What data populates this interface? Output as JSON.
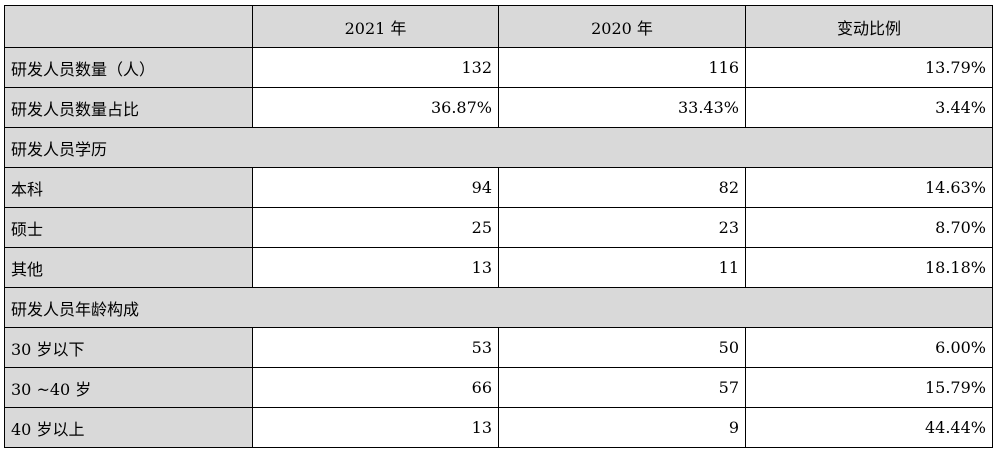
{
  "table": {
    "header": [
      "",
      "2021 年",
      "2020 年",
      "变动比例"
    ],
    "rows": [
      {
        "type": "data",
        "label": "研发人员数量（人）",
        "v2021": "132",
        "v2020": "116",
        "change": "13.79%"
      },
      {
        "type": "data",
        "label": "研发人员数量占比",
        "v2021": "36.87%",
        "v2020": "33.43%",
        "change": "3.44%"
      },
      {
        "type": "section",
        "label": "研发人员学历"
      },
      {
        "type": "data",
        "label": "本科",
        "v2021": "94",
        "v2020": "82",
        "change": "14.63%"
      },
      {
        "type": "data",
        "label": "硕士",
        "v2021": "25",
        "v2020": "23",
        "change": "8.70%"
      },
      {
        "type": "data",
        "label": "其他",
        "v2021": "13",
        "v2020": "11",
        "change": "18.18%"
      },
      {
        "type": "section",
        "label": "研发人员年龄构成"
      },
      {
        "type": "data",
        "label": "30 岁以下",
        "v2021": "53",
        "v2020": "50",
        "change": "6.00%"
      },
      {
        "type": "data",
        "label": "30 ~40 岁",
        "v2021": "66",
        "v2020": "57",
        "change": "15.79%"
      },
      {
        "type": "data",
        "label": "40 岁以上",
        "v2021": "13",
        "v2020": "9",
        "change": "44.44%"
      }
    ]
  }
}
